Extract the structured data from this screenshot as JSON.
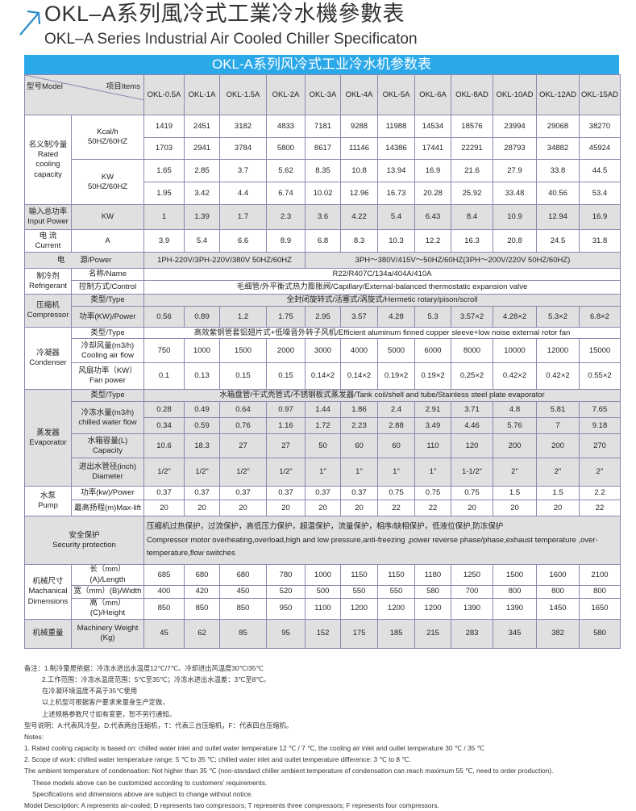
{
  "heading": {
    "title_cn": "OKL–A系列風冷式工業冷水機參數表",
    "title_en": "OKL–A Series Industrial Air Cooled Chiller Specificaton",
    "icon": "arrow-up-right-icon",
    "accent_color": "#2aa8e8"
  },
  "table": {
    "title": "OKL-A系列风冷式工业冷水机参数表",
    "header": {
      "model": "型号Model",
      "items": "项目Items",
      "models": [
        "OKL-0.5A",
        "OKL-1A",
        "OKL-1.5A",
        "OKL-2A",
        "OKL-3A",
        "OKL-4A",
        "OKL-5A",
        "OKL-6A",
        "OKL-8AD",
        "OKL-10AD",
        "OKL-12AD",
        "OKL-15AD"
      ]
    },
    "rows": [
      {
        "group": "名义制冷量\nRated\ncooling\ncapacity",
        "label": "Kcal/h\n50HZ/60HZ",
        "values": [
          "1419",
          "2451",
          "3182",
          "4833",
          "7181",
          "9288",
          "11988",
          "14534",
          "18576",
          "23994",
          "29068",
          "38270"
        ]
      },
      {
        "values": [
          "1703",
          "2941",
          "3784",
          "5800",
          "8617",
          "11146",
          "14386",
          "17441",
          "22291",
          "28793",
          "34882",
          "45924"
        ]
      },
      {
        "label": "KW\n50HZ/60HZ",
        "values": [
          "1.65",
          "2.85",
          "3.7",
          "5.62",
          "8.35",
          "10.8",
          "13.94",
          "16.9",
          "21.6",
          "27.9",
          "33.8",
          "44.5"
        ]
      },
      {
        "values": [
          "1.95",
          "3.42",
          "4.4",
          "6.74",
          "10.02",
          "12.96",
          "16.73",
          "20.28",
          "25.92",
          "33.48",
          "40.56",
          "53.4"
        ]
      },
      {
        "group": "输入总功率\nInput Power",
        "label": "KW",
        "values": [
          "1",
          "1.39",
          "1.7",
          "2.3",
          "3.6",
          "4.22",
          "5.4",
          "6.43",
          "8.4",
          "10.9",
          "12.94",
          "16.9"
        ]
      },
      {
        "group": "电 流\nCurrent",
        "label": "A",
        "values": [
          "3.9",
          "5.4",
          "6.6",
          "8.9",
          "6.8",
          "8.3",
          "10.3",
          "12.2",
          "16.3",
          "20.8",
          "24.5",
          "31.8"
        ]
      },
      {
        "full_label": "电　　源/Power",
        "segments": [
          "1PH-220V/3PH-220V/380V 50HZ/60HZ",
          "3PH～380V/415V～50HZ/60HZ(3PH～200V/220V   50HZ/60HZ)"
        ]
      },
      {
        "group": "制冷剂\nRefrigerant",
        "label": "名称/Name",
        "merged": "R22/R407C/134a/404A/410A"
      },
      {
        "label": "控制方式/Control",
        "merged": "毛细管/外平衡式热力膨胀阀/Capillary/External-balanced thermostatic expansion valve"
      },
      {
        "group": "压缩机\nCompressor",
        "label": "类型/Type",
        "merged": "全封闭旋转式/活塞式/涡旋式/Hermetic rotary/pison/scroll"
      },
      {
        "label": "功率(KW)/Power",
        "values": [
          "0.56",
          "0.89",
          "1.2",
          "1.75",
          "2.95",
          "3.57",
          "4.28",
          "5.3",
          "3.57×2",
          "4.28×2",
          "5.3×2",
          "6.8×2"
        ]
      },
      {
        "group": "冷凝器\nCondenser",
        "label": "类型/Type",
        "merged": "高效紫铜管套铝翅片式+低噪音外转子风机/Efficient aluminum finned copper sleeve+low noise external rotor fan"
      },
      {
        "label": "冷却风量(m3/h)\nCooling air flow",
        "values": [
          "750",
          "1000",
          "1500",
          "2000",
          "3000",
          "4000",
          "5000",
          "6000",
          "8000",
          "10000",
          "12000",
          "15000"
        ]
      },
      {
        "label": "风扇功率（KW）\nFan power",
        "values": [
          "0.1",
          "0.13",
          "0.15",
          "0.15",
          "0.14×2",
          "0.14×2",
          "0.19×2",
          "0.19×2",
          "0.25×2",
          "0.42×2",
          "0.42×2",
          "0.55×2"
        ]
      },
      {
        "group": "蒸发器\nEvaporator",
        "label": "类型/Type",
        "merged": "水箱盘管/干式壳管式/不锈钢板式蒸发器/Tank coil/shell and tube/Stainless steel plate evaporator"
      },
      {
        "label": "冷冻水量(m3/h)\nchilled water flow",
        "values": [
          "0.28",
          "0.49",
          "0.64",
          "0.97",
          "1.44",
          "1.86",
          "2.4",
          "2.91",
          "3.71",
          "4.8",
          "5.81",
          "7.65"
        ]
      },
      {
        "values": [
          "0.34",
          "0.59",
          "0.76",
          "1.16",
          "1.72",
          "2.23",
          "2.88",
          "3.49",
          "4.46",
          "5.76",
          "7",
          "9.18"
        ]
      },
      {
        "label": "水箱容量(L)\nCapacity",
        "values": [
          "10.6",
          "18.3",
          "27",
          "27",
          "50",
          "60",
          "60",
          "110",
          "120",
          "200",
          "200",
          "270"
        ]
      },
      {
        "label": "进出水管径(inch)\nDiameter",
        "values": [
          "1/2\"",
          "1/2\"",
          "1/2\"",
          "1/2\"",
          "1\"",
          "1\"",
          "1\"",
          "1\"",
          "1-1/2\"",
          "2\"",
          "2\"",
          "2\""
        ]
      },
      {
        "group": "水泵\nPump",
        "label": "功率(kw)/Power",
        "values": [
          "0.37",
          "0.37",
          "0.37",
          "0.37",
          "0.37",
          "0.37",
          "0.75",
          "0.75",
          "0.75",
          "1.5",
          "1.5",
          "2.2"
        ]
      },
      {
        "label": "最高扬程(m)Max-lift",
        "values": [
          "20",
          "20",
          "20",
          "20",
          "20",
          "20",
          "22",
          "22",
          "20",
          "20",
          "20",
          "22"
        ]
      },
      {
        "full_label": "安全保护\nSecurity protection",
        "merged": "压缩机过热保护，过流保护，高低压力保护，超温保护，流量保护，相序/缺相保护，低液位保护,防冻保护\nCompressor motor overheating,overload,high and low pressure,anti-freezing ,power reverse phase/phase,exhaust temperature ,over-temperature,flow switches"
      },
      {
        "group": "机械尺寸\nMachanical\nDimensions",
        "label": "长（mm）(A)/Length",
        "values": [
          "685",
          "680",
          "680",
          "780",
          "1000",
          "1150",
          "1150",
          "1180",
          "1250",
          "1500",
          "1600",
          "2100"
        ]
      },
      {
        "label": "宽（mm）(B)/Width",
        "values": [
          "400",
          "420",
          "450",
          "520",
          "500",
          "550",
          "550",
          "580",
          "700",
          "800",
          "800",
          "800"
        ]
      },
      {
        "label": "高（mm）(C)/Height",
        "values": [
          "850",
          "850",
          "850",
          "950",
          "1100",
          "1200",
          "1200",
          "1200",
          "1390",
          "1390",
          "1450",
          "1650"
        ]
      },
      {
        "group": "机械重量",
        "label": "Machinery Weight\n(Kg)",
        "values": [
          "45",
          "62",
          "85",
          "95",
          "152",
          "175",
          "185",
          "215",
          "283",
          "345",
          "382",
          "580"
        ]
      }
    ]
  },
  "notes": {
    "cn": [
      "备注：1.制冷量是依据：冷冻水进出水温度12℃/7℃、冷却进出风温度30℃/35℃",
      "2.工作范围：冷冻水温度范围：5℃至35℃；冷冻水进出水温差：3℃至8℃。",
      "在冷凝环境温度不高于35℃使用",
      "以上机型可根据客户要求来量身生产定做。",
      "上述规格参数尺寸如有变更，恕不另行通知。",
      "型号说明：A:代表风冷型，D:代表两台压缩机，T：代表三台压缩机，F：代表四台压缩机。"
    ],
    "en": [
      "Notes:",
      "1. Rated cooling capacity is based on: chilled water inlet and outlet water temperature 12 ℃ / 7 ℃, the cooling air inlet and outlet temperature 30 ℃ / 35 ℃",
      "2. Scope of work: chilled water temperature range: 5 ℃ to 35 ℃; chilled water inlet and outlet temperature difference: 3 ℃ to 8 ℃.",
      "The ambient temperature of condensation: Not higher than 35 ℃ (non-standard chiller ambient temperature of condensation can reach maximum 55 ℃, need to order production).",
      "These models above can be customized according to customers’  requirements.",
      "Specifications and dimensions above are subject to change without notice.",
      "Model Description: A represents air-cooled; D represents two compressors; T represents three compressors; F represents four compressors."
    ]
  }
}
